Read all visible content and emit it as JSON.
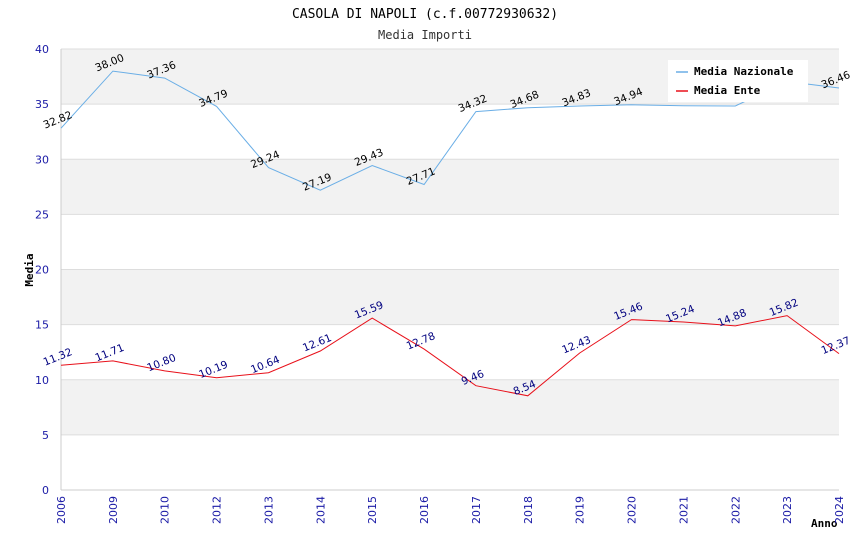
{
  "chart_data": {
    "type": "line",
    "title": "CASOLA DI NAPOLI (c.f.00772930632)",
    "subtitle": "Media Importi",
    "xlabel": "Anno",
    "ylabel": "Media",
    "ylim": [
      0,
      40
    ],
    "yticks": [
      "0",
      "5",
      "10",
      "15",
      "20",
      "25",
      "30",
      "35",
      "40"
    ],
    "categories": [
      "2006",
      "2009",
      "2010",
      "2012",
      "2013",
      "2014",
      "2015",
      "2016",
      "2017",
      "2018",
      "2019",
      "2020",
      "2021",
      "2022",
      "2023",
      "2024"
    ],
    "legend_position": "top-right",
    "series": [
      {
        "name": "Media Nazionale",
        "color": "#6aaee6",
        "label_color": "#000000",
        "values": [
          32.82,
          38.0,
          37.36,
          34.79,
          29.24,
          27.19,
          29.43,
          27.71,
          34.32,
          34.68,
          34.83,
          34.94,
          34.86,
          34.83,
          37.05,
          36.46
        ],
        "labels": [
          "32.82",
          "38.00",
          "37.36",
          "34.79",
          "29.24",
          "27.19",
          "29.43",
          "27.71",
          "34.32",
          "34.68",
          "34.83",
          "34.94",
          "",
          "",
          "",
          "36.46"
        ]
      },
      {
        "name": "Media Ente",
        "color": "#e8101a",
        "label_color": "#00007f",
        "values": [
          11.32,
          11.71,
          10.8,
          10.19,
          10.64,
          12.61,
          15.59,
          12.78,
          9.46,
          8.54,
          12.43,
          15.46,
          15.24,
          14.88,
          15.82,
          12.37
        ],
        "labels": [
          "11.32",
          "11.71",
          "10.80",
          "10.19",
          "10.64",
          "12.61",
          "15.59",
          "12.78",
          "9.46",
          "8.54",
          "12.43",
          "15.46",
          "15.24",
          "14.88",
          "15.82",
          "12.37"
        ]
      }
    ]
  }
}
